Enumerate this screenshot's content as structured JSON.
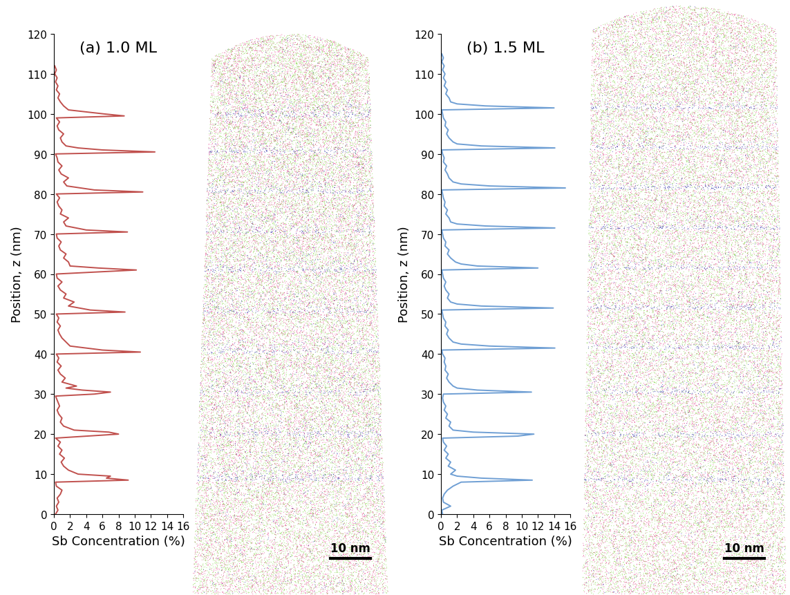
{
  "chart_data": [
    {
      "type": "line",
      "title": "(a) 1.0 ML",
      "xlabel": "Sb Concentration (%)",
      "ylabel": "Position, z (nm)",
      "xlim": [
        0,
        16
      ],
      "xticks": [
        0,
        2,
        4,
        6,
        8,
        10,
        12,
        14,
        16
      ],
      "ylim": [
        0,
        120
      ],
      "yticks": [
        0,
        10,
        20,
        30,
        40,
        50,
        60,
        70,
        80,
        90,
        100,
        110,
        120
      ],
      "color": "#c0504d",
      "y": [
        0,
        1,
        2,
        3,
        4,
        5,
        6,
        7,
        8,
        8.5,
        9,
        9.5,
        10,
        11,
        12,
        13,
        14,
        15,
        16,
        17,
        18,
        19,
        20,
        20.5,
        21,
        22,
        23,
        24,
        25,
        26,
        27,
        28,
        29,
        29.5,
        30,
        30.5,
        31,
        31.5,
        32,
        33,
        34,
        35,
        36,
        37,
        38,
        39,
        40,
        40.5,
        41,
        41.5,
        42,
        43,
        44,
        45,
        46,
        47,
        48,
        49,
        50,
        50.5,
        51,
        52,
        53,
        54,
        55,
        56,
        57,
        58,
        59,
        60,
        61,
        61.5,
        62,
        63,
        64,
        65,
        66,
        67,
        68,
        69,
        70,
        70.5,
        71,
        72,
        73,
        74,
        75,
        76,
        77,
        78,
        79,
        80,
        80.5,
        81,
        82,
        83,
        84,
        85,
        86,
        87,
        88,
        89,
        90,
        90.5,
        91,
        91.5,
        92,
        93,
        94,
        95,
        96,
        97,
        98,
        99,
        99.5,
        100,
        100.5,
        101,
        102,
        103,
        104,
        105,
        106,
        107,
        108,
        109,
        110,
        111,
        112
      ],
      "x": [
        0.2,
        0.5,
        0.3,
        0.6,
        0.4,
        0.8,
        1.0,
        0.3,
        0.2,
        9.2,
        6.5,
        7.0,
        3.0,
        1.8,
        1.2,
        0.9,
        1.3,
        0.7,
        1.0,
        0.5,
        0.8,
        0.2,
        8.0,
        6.8,
        2.5,
        1.2,
        0.8,
        1.0,
        0.6,
        0.4,
        0.7,
        0.5,
        0.3,
        0.2,
        5.0,
        7.0,
        3.5,
        1.5,
        2.8,
        1.0,
        1.4,
        0.8,
        0.5,
        0.9,
        0.4,
        0.6,
        0.3,
        10.7,
        6.0,
        4.0,
        2.0,
        1.5,
        1.0,
        0.7,
        0.5,
        0.8,
        0.4,
        0.6,
        0.3,
        8.8,
        4.5,
        1.8,
        2.5,
        1.2,
        1.5,
        0.8,
        0.5,
        1.0,
        0.4,
        0.3,
        10.2,
        5.5,
        2.0,
        1.8,
        1.2,
        1.5,
        0.8,
        0.6,
        0.9,
        0.4,
        0.3,
        9.1,
        4.0,
        1.5,
        1.2,
        1.8,
        0.8,
        1.0,
        0.6,
        0.4,
        0.7,
        0.3,
        11.0,
        5.0,
        1.6,
        1.2,
        1.8,
        0.9,
        0.6,
        1.0,
        0.5,
        0.4,
        0.2,
        12.5,
        6.0,
        3.0,
        1.5,
        1.0,
        0.8,
        1.2,
        0.6,
        0.4,
        0.7,
        0.3,
        8.7,
        6.2,
        4.0,
        1.8,
        1.2,
        0.8,
        0.5,
        0.7,
        0.3,
        0.5,
        0.2,
        0.4,
        0.1,
        0.3,
        0.1
      ],
      "scale_bar": {
        "length": 10,
        "label": "10 nm"
      }
    },
    {
      "type": "line",
      "title": "(b) 1.5 ML",
      "xlabel": "Sb Concentration (%)",
      "ylabel": "Position, z (nm)",
      "xlim": [
        0,
        16
      ],
      "xticks": [
        0,
        2,
        4,
        6,
        8,
        10,
        12,
        14,
        16
      ],
      "ylim": [
        0,
        120
      ],
      "yticks": [
        0,
        10,
        20,
        30,
        40,
        50,
        60,
        70,
        80,
        90,
        100,
        110,
        120
      ],
      "color": "#6f9fd4",
      "y": [
        0,
        1,
        2,
        3,
        4,
        5,
        6,
        7,
        8,
        8.5,
        9,
        9.5,
        10,
        11,
        12,
        13,
        14,
        15,
        16,
        17,
        18,
        19,
        19.5,
        20,
        20.5,
        21,
        22,
        23,
        24,
        25,
        26,
        27,
        28,
        29,
        30,
        30.5,
        31,
        31.5,
        32,
        33,
        34,
        35,
        36,
        37,
        38,
        39,
        40,
        41,
        41.5,
        42,
        42.5,
        43,
        44,
        45,
        46,
        47,
        48,
        49,
        50,
        51,
        51.5,
        52,
        52.5,
        53,
        54,
        55,
        56,
        57,
        58,
        59,
        60,
        61,
        61.5,
        62,
        62.5,
        63,
        64,
        65,
        66,
        67,
        68,
        69,
        70,
        71,
        71.5,
        72,
        72.5,
        73,
        74,
        75,
        76,
        77,
        78,
        79,
        80,
        81,
        81.5,
        82,
        82.5,
        83,
        84,
        85,
        86,
        87,
        88,
        89,
        90,
        91,
        91.5,
        92,
        92.5,
        93,
        94,
        95,
        96,
        97,
        98,
        99,
        100,
        101,
        101.5,
        102,
        102.5,
        103,
        104,
        105,
        106,
        107,
        108,
        109,
        110,
        111,
        112,
        113,
        114,
        115
      ],
      "x": [
        0.2,
        0.1,
        1.2,
        0.3,
        0.2,
        0.4,
        0.8,
        1.5,
        2.5,
        11.3,
        5.0,
        2.0,
        1.2,
        1.8,
        0.9,
        1.2,
        0.6,
        0.9,
        0.4,
        0.7,
        0.3,
        0.2,
        9.5,
        11.5,
        4.0,
        1.5,
        1.0,
        1.2,
        0.6,
        0.8,
        0.4,
        0.6,
        0.3,
        0.2,
        0.3,
        11.2,
        4.5,
        2.0,
        1.5,
        1.0,
        0.7,
        0.9,
        0.5,
        0.6,
        0.4,
        0.5,
        0.2,
        0.1,
        14.1,
        6.0,
        2.5,
        1.5,
        1.0,
        0.7,
        0.9,
        0.5,
        0.6,
        0.3,
        0.2,
        0.1,
        13.9,
        5.0,
        2.0,
        1.2,
        0.8,
        1.0,
        0.6,
        0.4,
        0.6,
        0.3,
        0.2,
        0.1,
        12.0,
        4.5,
        2.5,
        1.8,
        1.2,
        0.8,
        1.0,
        0.5,
        0.6,
        0.3,
        0.2,
        0.1,
        14.1,
        5.5,
        2.0,
        1.2,
        1.0,
        0.6,
        0.8,
        0.4,
        0.5,
        0.3,
        0.2,
        0.1,
        15.4,
        6.0,
        2.5,
        1.5,
        1.0,
        0.8,
        0.5,
        0.7,
        0.3,
        0.4,
        0.2,
        0.1,
        14.1,
        5.0,
        2.0,
        1.5,
        1.0,
        0.7,
        0.9,
        0.5,
        0.6,
        0.3,
        0.2,
        0.1,
        14.0,
        5.5,
        2.0,
        1.2,
        1.0,
        0.6,
        0.8,
        0.4,
        0.6,
        0.3,
        0.5,
        0.2,
        0.4,
        0.1,
        0.3,
        0.1
      ],
      "scale_bar": {
        "length": 10,
        "label": "10 nm"
      }
    }
  ]
}
